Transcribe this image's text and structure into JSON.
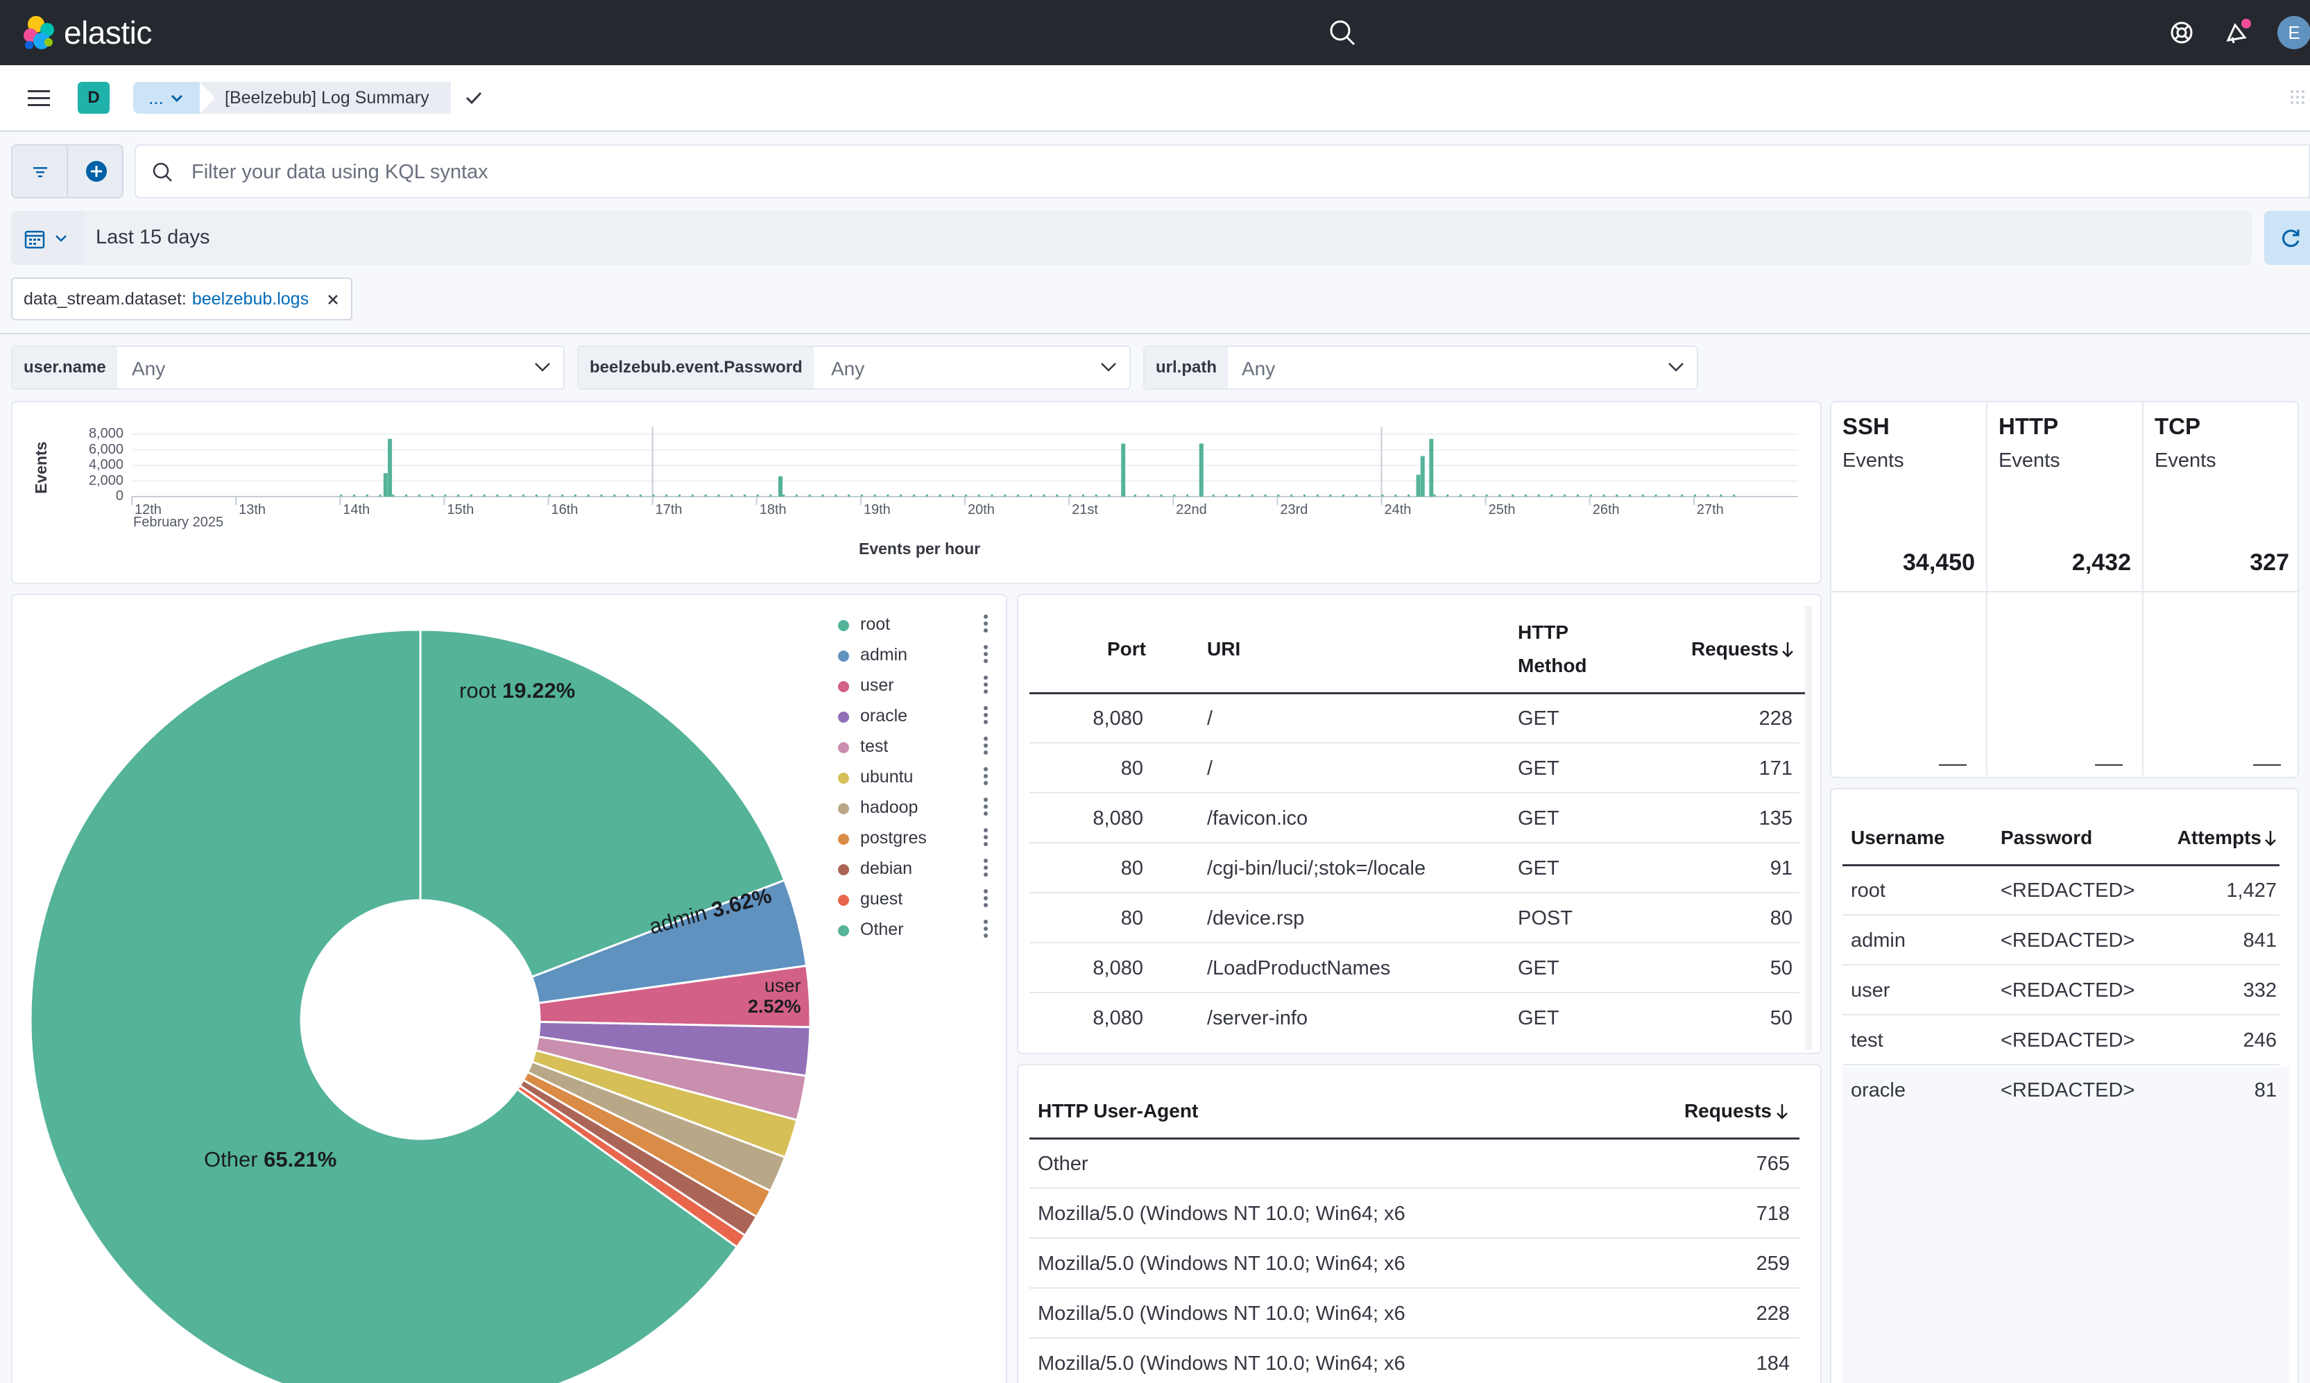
{
  "app": {
    "brand": "elastic",
    "avatar_initial": "E",
    "space_initial": "D"
  },
  "breadcrumbs": {
    "collapsed": "...",
    "current": "[Beelzebub] Log Summary"
  },
  "query": {
    "placeholder": "Filter your data using KQL syntax"
  },
  "time": {
    "range": "Last 15 days"
  },
  "filter_pill": {
    "field": "data_stream.dataset:",
    "value": "beelzebub.logs"
  },
  "controls": [
    {
      "label": "user.name",
      "value": "Any"
    },
    {
      "label": "beelzebub.event.Password",
      "value": "Any"
    },
    {
      "label": "url.path",
      "value": "Any"
    }
  ],
  "histogram": {
    "ylabel": "Events",
    "xlabel": "Events per hour",
    "y_ticks": [
      "8,000",
      "6,000",
      "4,000",
      "2,000",
      "0"
    ],
    "x_ticks": [
      "12th",
      "13th",
      "14th",
      "15th",
      "16th",
      "17th",
      "18th",
      "19th",
      "20th",
      "21st",
      "22nd",
      "23rd",
      "24th",
      "25th",
      "26th",
      "27th"
    ],
    "month_label": "February 2025"
  },
  "chart_data": [
    {
      "type": "bar",
      "title": "Events per hour",
      "xlabel": "Events per hour",
      "ylabel": "Events",
      "ylim": [
        0,
        8000
      ],
      "x_range": [
        "2025-02-12",
        "2025-02-27"
      ],
      "spikes": [
        {
          "x": "2025-02-14 10:00",
          "y": 3000
        },
        {
          "x": "2025-02-14 11:00",
          "y": 7400
        },
        {
          "x": "2025-02-18 05:00",
          "y": 2600
        },
        {
          "x": "2025-02-21 12:00",
          "y": 6800
        },
        {
          "x": "2025-02-22 06:00",
          "y": 6800
        },
        {
          "x": "2025-02-24 08:00",
          "y": 2800
        },
        {
          "x": "2025-02-24 09:00",
          "y": 5200
        },
        {
          "x": "2025-02-24 11:00",
          "y": 7400
        }
      ]
    },
    {
      "type": "pie",
      "title": "",
      "categories": [
        "root",
        "admin",
        "user",
        "oracle",
        "test",
        "ubuntu",
        "hadoop",
        "postgres",
        "debian",
        "guest",
        "Other"
      ],
      "values": [
        19.22,
        3.62,
        2.52,
        2.0,
        1.85,
        1.6,
        1.5,
        1.2,
        0.9,
        0.58,
        65.21
      ],
      "colors": [
        "#54b399",
        "#6092c0",
        "#d36086",
        "#9170b8",
        "#ca8eae",
        "#d6bf57",
        "#b9a888",
        "#da8b45",
        "#aa6556",
        "#e7664c",
        "#54b399"
      ]
    }
  ],
  "pie_labels": {
    "root": {
      "name": "root",
      "pct": "19.22%"
    },
    "admin": {
      "name": "admin",
      "pct": "3.62%"
    },
    "user": {
      "name": "user",
      "pct": "2.52%"
    },
    "other": {
      "name": "Other",
      "pct": "65.21%"
    }
  },
  "metrics": [
    {
      "title": "SSH",
      "subtitle": "Events",
      "value": "34,450"
    },
    {
      "title": "HTTP",
      "subtitle": "Events",
      "value": "2,432"
    },
    {
      "title": "TCP",
      "subtitle": "Events",
      "value": "327"
    }
  ],
  "http_table": {
    "headers": {
      "port": "Port",
      "uri": "URI",
      "method_1": "HTTP",
      "method_2": "Method",
      "requests": "Requests"
    },
    "rows": [
      {
        "port": "8,080",
        "uri": "/",
        "method": "GET",
        "requests": "228"
      },
      {
        "port": "80",
        "uri": "/",
        "method": "GET",
        "requests": "171"
      },
      {
        "port": "8,080",
        "uri": "/favicon.ico",
        "method": "GET",
        "requests": "135"
      },
      {
        "port": "80",
        "uri": "/cgi-bin/luci/;stok=/locale",
        "method": "GET",
        "requests": "91"
      },
      {
        "port": "80",
        "uri": "/device.rsp",
        "method": "POST",
        "requests": "80"
      },
      {
        "port": "8,080",
        "uri": "/LoadProductNames",
        "method": "GET",
        "requests": "50"
      },
      {
        "port": "8,080",
        "uri": "/server-info",
        "method": "GET",
        "requests": "50"
      }
    ]
  },
  "ua_table": {
    "headers": {
      "agent": "HTTP User-Agent",
      "requests": "Requests"
    },
    "rows": [
      {
        "agent": "Other",
        "requests": "765"
      },
      {
        "agent": "Mozilla/5.0 (Windows NT 10.0; Win64; x6",
        "requests": "718"
      },
      {
        "agent": "Mozilla/5.0 (Windows NT 10.0; Win64; x6",
        "requests": "259"
      },
      {
        "agent": "Mozilla/5.0 (Windows NT 10.0; Win64; x6",
        "requests": "228"
      },
      {
        "agent": "Mozilla/5.0 (Windows NT 10.0; Win64; x6",
        "requests": "184"
      }
    ]
  },
  "cred_table": {
    "headers": {
      "username": "Username",
      "password": "Password",
      "attempts": "Attempts"
    },
    "rows": [
      {
        "username": "root",
        "password": "<REDACTED>",
        "attempts": "1,427"
      },
      {
        "username": "admin",
        "password": "<REDACTED>",
        "attempts": "841"
      },
      {
        "username": "user",
        "password": "<REDACTED>",
        "attempts": "332"
      },
      {
        "username": "test",
        "password": "<REDACTED>",
        "attempts": "246"
      },
      {
        "username": "oracle",
        "password": "<REDACTED>",
        "attempts": "81"
      }
    ]
  }
}
